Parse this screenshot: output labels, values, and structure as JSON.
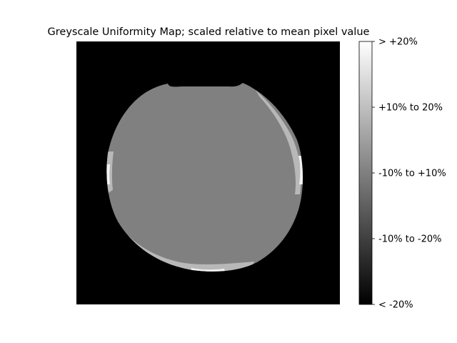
{
  "chart_data": {
    "type": "heatmap",
    "title": "Greyscale Uniformity Map; scaled relative to mean pixel value",
    "xlabel": "",
    "ylabel": "",
    "grid": false,
    "colormap": "grey",
    "colorbar": {
      "orientation": "vertical",
      "placement": "right",
      "ticks": [
        {
          "label": "> +20%",
          "level": 2
        },
        {
          "label": "+10% to 20%",
          "level": 1
        },
        {
          "label": "-10% to +10%",
          "level": 0
        },
        {
          "label": "-10% to -20%",
          "level": -1
        },
        {
          "label": "< -20%",
          "level": -2
        }
      ]
    },
    "classes": [
      {
        "label": "> +20%",
        "level": 2,
        "color": "#f2f2f2"
      },
      {
        "label": "+10% to 20%",
        "level": 1,
        "color": "#b8b8b8"
      },
      {
        "label": "-10% to +10%",
        "level": 0,
        "color": "#808080"
      },
      {
        "label": "-10% to -20%",
        "level": -1,
        "color": "#404040"
      },
      {
        "label": "< -20%",
        "level": -2,
        "color": "#000000"
      }
    ],
    "background_color": "#000000",
    "phantom_color": "#808080"
  }
}
